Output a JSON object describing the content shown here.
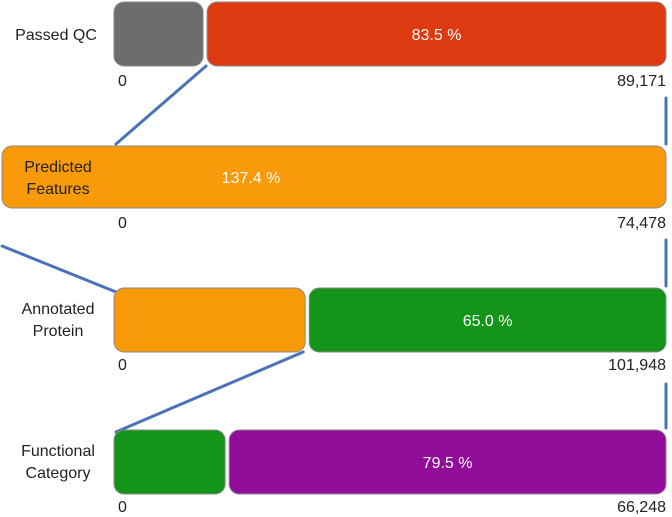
{
  "chart_data": {
    "type": "bar",
    "title": "",
    "rows": [
      {
        "label_lines": [
          "Passed QC"
        ],
        "percent_label": "83.5 %",
        "axis_min_label": "0",
        "axis_max_label": "89,171",
        "segments": [
          {
            "fraction": 0.165,
            "color": "#6d6d6d"
          },
          {
            "fraction": 0.835,
            "color": "#de3a12"
          }
        ]
      },
      {
        "label_lines": [
          "Predicted",
          "Features"
        ],
        "percent_label": "137.4 %",
        "axis_min_label": "0",
        "axis_max_label": "74,478",
        "segments": [
          {
            "fraction": 1.0,
            "color": "#f89a0a"
          }
        ]
      },
      {
        "label_lines": [
          "Annotated",
          "Protein"
        ],
        "percent_label": "65.0 %",
        "axis_min_label": "0",
        "axis_max_label": "101,948",
        "segments": [
          {
            "fraction": 0.35,
            "color": "#f89a0a"
          },
          {
            "fraction": 0.65,
            "color": "#149418"
          }
        ]
      },
      {
        "label_lines": [
          "Functional",
          "Category"
        ],
        "percent_label": "79.5 %",
        "axis_min_label": "0",
        "axis_max_label": "66,248",
        "segments": [
          {
            "fraction": 0.205,
            "color": "#149418"
          },
          {
            "fraction": 0.795,
            "color": "#920c9a"
          }
        ]
      }
    ],
    "connector_color": "#4a72b8"
  }
}
